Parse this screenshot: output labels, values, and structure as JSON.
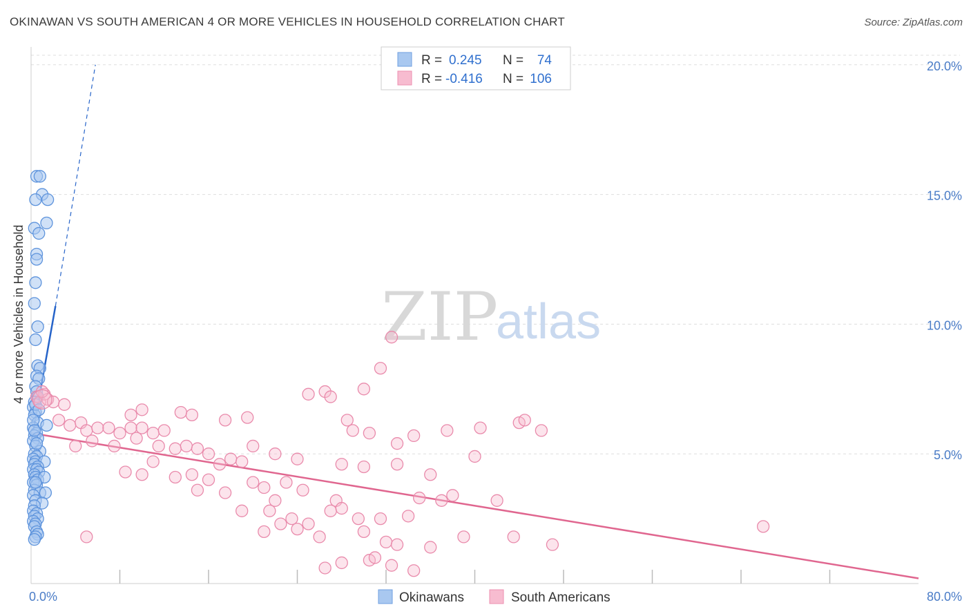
{
  "title": "OKINAWAN VS SOUTH AMERICAN 4 OR MORE VEHICLES IN HOUSEHOLD CORRELATION CHART",
  "source": "Source: ZipAtlas.com",
  "watermark": {
    "zip": "ZIP",
    "atlas": "atlas"
  },
  "legend_top": {
    "rows": [
      {
        "r_label": "R =",
        "r_value": "0.245",
        "n_label": "N =",
        "n_value": "74",
        "color": "#a9c8f0",
        "stroke": "#6f9fe0"
      },
      {
        "r_label": "R =",
        "r_value": "-0.416",
        "n_label": "N =",
        "n_value": "106",
        "color": "#f7bcd0",
        "stroke": "#ec8fb0"
      }
    ]
  },
  "legend_bottom": [
    {
      "label": "Okinawans",
      "color": "#a9c8f0",
      "stroke": "#6f9fe0"
    },
    {
      "label": "South Americans",
      "color": "#f7bcd0",
      "stroke": "#ec8fb0"
    }
  ],
  "colors": {
    "blue": "#4a87d8",
    "blue_line": "#2563c9",
    "pink": "#ec8fb0",
    "pink_line": "#e0668f",
    "grid": "#dddddd"
  },
  "chart_data": {
    "type": "scatter",
    "xlabel": "",
    "ylabel": "4 or more Vehicles in Household",
    "xlim": [
      0,
      80
    ],
    "ylim": [
      0,
      20.5
    ],
    "x_tick_labels": [
      "0.0%",
      "80.0%"
    ],
    "y_tick_labels": [
      "5.0%",
      "10.0%",
      "15.0%",
      "20.0%"
    ],
    "y_ticks": [
      5,
      10,
      15,
      20
    ],
    "x_minor_ticks": [
      8,
      16,
      24,
      32,
      40,
      48,
      56,
      64,
      72
    ],
    "series": [
      {
        "name": "Okinawans",
        "points": [
          [
            0.5,
            15.7
          ],
          [
            0.8,
            15.7
          ],
          [
            1.0,
            15.0
          ],
          [
            0.4,
            14.8
          ],
          [
            1.5,
            14.8
          ],
          [
            1.4,
            13.9
          ],
          [
            0.3,
            13.7
          ],
          [
            0.7,
            13.5
          ],
          [
            0.5,
            12.7
          ],
          [
            0.5,
            12.5
          ],
          [
            0.4,
            11.6
          ],
          [
            0.3,
            10.8
          ],
          [
            0.6,
            9.9
          ],
          [
            0.4,
            9.4
          ],
          [
            0.6,
            8.4
          ],
          [
            0.8,
            8.3
          ],
          [
            0.5,
            8.0
          ],
          [
            0.7,
            7.9
          ],
          [
            0.4,
            7.6
          ],
          [
            0.5,
            7.4
          ],
          [
            0.6,
            7.2
          ],
          [
            0.3,
            7.0
          ],
          [
            0.2,
            6.8
          ],
          [
            0.4,
            6.6
          ],
          [
            0.3,
            6.5
          ],
          [
            0.6,
            6.2
          ],
          [
            1.4,
            6.1
          ],
          [
            0.2,
            6.0
          ],
          [
            0.5,
            5.8
          ],
          [
            0.3,
            5.7
          ],
          [
            0.6,
            5.6
          ],
          [
            0.2,
            5.5
          ],
          [
            0.4,
            5.3
          ],
          [
            0.8,
            5.1
          ],
          [
            0.3,
            5.0
          ],
          [
            0.5,
            4.9
          ],
          [
            0.2,
            4.8
          ],
          [
            0.4,
            4.7
          ],
          [
            1.2,
            4.7
          ],
          [
            0.3,
            4.6
          ],
          [
            0.6,
            4.5
          ],
          [
            0.2,
            4.4
          ],
          [
            0.5,
            4.4
          ],
          [
            0.7,
            4.3
          ],
          [
            0.3,
            4.2
          ],
          [
            0.4,
            4.1
          ],
          [
            0.6,
            4.0
          ],
          [
            1.2,
            4.1
          ],
          [
            0.2,
            3.9
          ],
          [
            0.5,
            3.8
          ],
          [
            0.3,
            3.6
          ],
          [
            0.8,
            3.5
          ],
          [
            1.3,
            3.5
          ],
          [
            0.2,
            3.4
          ],
          [
            0.4,
            3.2
          ],
          [
            1.0,
            3.1
          ],
          [
            0.3,
            3.0
          ],
          [
            0.2,
            2.8
          ],
          [
            0.5,
            2.7
          ],
          [
            0.3,
            2.6
          ],
          [
            0.6,
            2.5
          ],
          [
            0.2,
            2.4
          ],
          [
            0.4,
            2.3
          ],
          [
            0.3,
            2.2
          ],
          [
            0.5,
            2.0
          ],
          [
            0.6,
            1.9
          ],
          [
            0.4,
            1.8
          ],
          [
            0.3,
            1.7
          ],
          [
            0.2,
            6.3
          ],
          [
            0.4,
            6.9
          ],
          [
            0.7,
            6.7
          ],
          [
            0.3,
            5.9
          ],
          [
            0.5,
            5.4
          ],
          [
            0.4,
            3.9
          ]
        ]
      },
      {
        "name": "South Americans",
        "points": [
          [
            0.5,
            7.2
          ],
          [
            0.8,
            7.0
          ],
          [
            1.2,
            7.3
          ],
          [
            1.5,
            7.1
          ],
          [
            2.0,
            7.0
          ],
          [
            3.0,
            6.9
          ],
          [
            1.0,
            7.4
          ],
          [
            2.5,
            6.3
          ],
          [
            3.5,
            6.1
          ],
          [
            4.5,
            6.2
          ],
          [
            5.0,
            5.9
          ],
          [
            6.0,
            6.0
          ],
          [
            7.0,
            6.0
          ],
          [
            8.0,
            5.8
          ],
          [
            9.0,
            6.0
          ],
          [
            10.0,
            6.0
          ],
          [
            11.0,
            5.8
          ],
          [
            12.0,
            5.9
          ],
          [
            4.0,
            5.3
          ],
          [
            5.5,
            5.5
          ],
          [
            7.5,
            5.3
          ],
          [
            9.5,
            5.6
          ],
          [
            11.5,
            5.3
          ],
          [
            13.0,
            5.2
          ],
          [
            14.0,
            5.3
          ],
          [
            15.0,
            5.2
          ],
          [
            16.0,
            5.0
          ],
          [
            17.0,
            4.6
          ],
          [
            18.0,
            4.8
          ],
          [
            19.0,
            4.7
          ],
          [
            9.0,
            6.5
          ],
          [
            10.0,
            6.7
          ],
          [
            13.5,
            6.6
          ],
          [
            14.5,
            6.5
          ],
          [
            17.5,
            6.3
          ],
          [
            19.5,
            6.4
          ],
          [
            8.5,
            4.3
          ],
          [
            10.0,
            4.2
          ],
          [
            11.0,
            4.7
          ],
          [
            13.0,
            4.1
          ],
          [
            14.5,
            4.2
          ],
          [
            16.0,
            4.0
          ],
          [
            17.5,
            3.5
          ],
          [
            20.0,
            3.9
          ],
          [
            21.0,
            3.7
          ],
          [
            22.0,
            3.2
          ],
          [
            23.0,
            3.9
          ],
          [
            24.5,
            3.6
          ],
          [
            19.0,
            2.8
          ],
          [
            21.5,
            2.8
          ],
          [
            23.5,
            2.5
          ],
          [
            24.0,
            2.1
          ],
          [
            25.0,
            2.3
          ],
          [
            26.0,
            1.8
          ],
          [
            27.0,
            2.8
          ],
          [
            27.5,
            3.2
          ],
          [
            28.0,
            2.9
          ],
          [
            29.5,
            2.5
          ],
          [
            30.0,
            2.0
          ],
          [
            31.5,
            2.5
          ],
          [
            32.0,
            1.6
          ],
          [
            33.0,
            1.5
          ],
          [
            34.0,
            2.6
          ],
          [
            36.0,
            1.4
          ],
          [
            37.0,
            3.2
          ],
          [
            38.0,
            3.4
          ],
          [
            25.0,
            7.3
          ],
          [
            26.5,
            7.4
          ],
          [
            27.0,
            7.2
          ],
          [
            30.0,
            7.5
          ],
          [
            31.5,
            8.3
          ],
          [
            32.5,
            9.5
          ],
          [
            28.5,
            6.3
          ],
          [
            29.0,
            5.9
          ],
          [
            30.5,
            5.8
          ],
          [
            33.0,
            5.4
          ],
          [
            34.5,
            5.7
          ],
          [
            37.5,
            5.9
          ],
          [
            40.5,
            6.0
          ],
          [
            44.0,
            6.2
          ],
          [
            44.5,
            6.3
          ],
          [
            46.0,
            5.9
          ],
          [
            36.0,
            4.2
          ],
          [
            40.0,
            4.9
          ],
          [
            20.0,
            5.3
          ],
          [
            22.0,
            5.0
          ],
          [
            24.0,
            4.8
          ],
          [
            28.0,
            4.6
          ],
          [
            30.0,
            4.5
          ],
          [
            33.0,
            4.6
          ],
          [
            39.0,
            1.8
          ],
          [
            43.5,
            1.8
          ],
          [
            47.0,
            1.5
          ],
          [
            66.0,
            2.2
          ],
          [
            42.0,
            3.2
          ],
          [
            35.0,
            3.3
          ],
          [
            5.0,
            1.8
          ],
          [
            21.0,
            2.0
          ],
          [
            22.5,
            2.3
          ],
          [
            26.5,
            0.6
          ],
          [
            28.0,
            0.8
          ],
          [
            30.5,
            0.9
          ],
          [
            31.0,
            1.0
          ],
          [
            32.5,
            0.7
          ],
          [
            34.5,
            0.5
          ],
          [
            15.0,
            3.6
          ]
        ]
      }
    ],
    "trend_lines": [
      {
        "series": "Okinawans",
        "solid": [
          [
            0.2,
            5.9
          ],
          [
            2.2,
            10.7
          ]
        ],
        "dashed": [
          [
            2.2,
            10.7
          ],
          [
            5.8,
            20.0
          ]
        ]
      },
      {
        "series": "South Americans",
        "solid": [
          [
            0.0,
            5.8
          ],
          [
            80.0,
            0.2
          ]
        ]
      }
    ]
  }
}
